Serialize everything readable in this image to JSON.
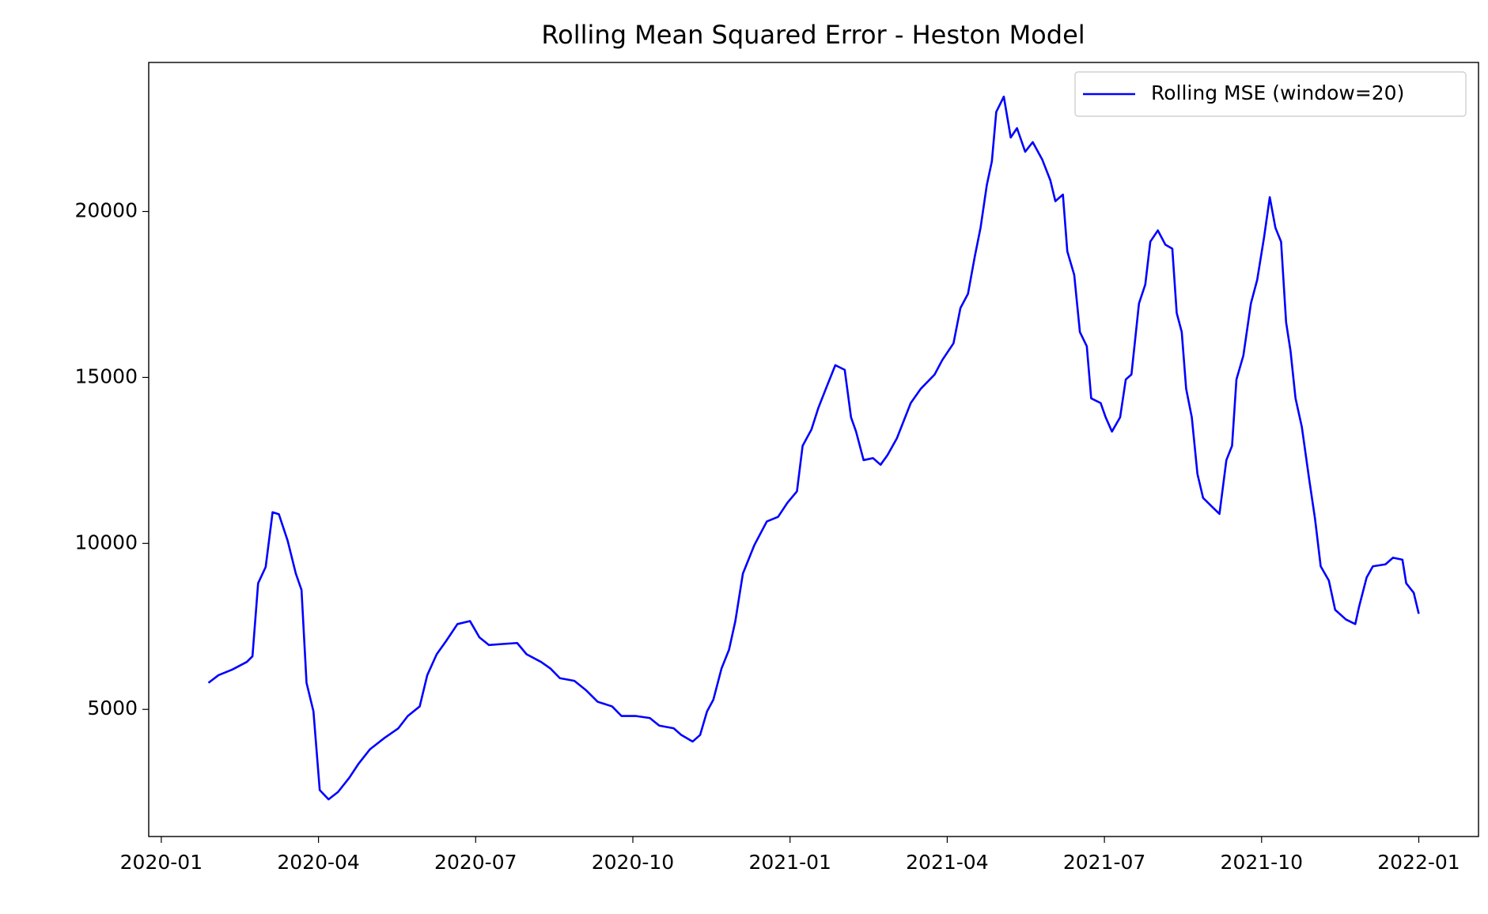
{
  "chart_data": {
    "type": "line",
    "title": "Rolling Mean Squared Error - Heston Model",
    "x": [
      2020.075,
      2020.091,
      2020.113,
      2020.136,
      2020.145,
      2020.154,
      2020.166,
      2020.177,
      2020.187,
      2020.201,
      2020.214,
      2020.223,
      2020.231,
      2020.242,
      2020.252,
      2020.266,
      2020.281,
      2020.299,
      2020.314,
      2020.332,
      2020.355,
      2020.377,
      2020.392,
      2020.411,
      2020.423,
      2020.438,
      2020.453,
      2020.471,
      2020.491,
      2020.506,
      2020.521,
      2020.543,
      2020.566,
      2020.581,
      2020.604,
      2020.619,
      2020.634,
      2020.657,
      2020.676,
      2020.694,
      2020.717,
      2020.732,
      2020.755,
      2020.777,
      2020.792,
      2020.815,
      2020.827,
      2020.845,
      2020.857,
      2020.868,
      2020.878,
      2020.891,
      2020.903,
      2020.913,
      2020.925,
      2020.943,
      2020.963,
      2020.981,
      2020.996,
      2021.011,
      2021.02,
      2021.034,
      2021.045,
      2021.057,
      2021.072,
      2021.087,
      2021.097,
      2021.105,
      2021.117,
      2021.132,
      2021.144,
      2021.155,
      2021.17,
      2021.192,
      2021.208,
      2021.23,
      2021.242,
      2021.26,
      2021.271,
      2021.283,
      2021.294,
      2021.303,
      2021.313,
      2021.321,
      2021.328,
      2021.34,
      2021.351,
      2021.361,
      2021.374,
      2021.386,
      2021.401,
      2021.414,
      2021.422,
      2021.434,
      2021.441,
      2021.452,
      2021.461,
      2021.472,
      2021.479,
      2021.494,
      2021.502,
      2021.512,
      2021.525,
      2021.534,
      2021.543,
      2021.555,
      2021.565,
      2021.573,
      2021.585,
      2021.597,
      2021.608,
      2021.615,
      2021.623,
      2021.63,
      2021.639,
      2021.648,
      2021.657,
      2021.672,
      2021.683,
      2021.694,
      2021.703,
      2021.71,
      2021.721,
      2021.733,
      2021.743,
      2021.754,
      2021.763,
      2021.772,
      2021.781,
      2021.789,
      2021.796,
      2021.804,
      2021.814,
      2021.826,
      2021.835,
      2021.844,
      2021.857,
      2021.867,
      2021.884,
      2021.899,
      2021.905,
      2021.917,
      2021.927,
      2021.947,
      2021.959,
      2021.974,
      2021.98,
      2021.992,
      2022.0
    ],
    "series": [
      {
        "name": "Rolling MSE (window=20)",
        "color": "#0000ff",
        "values": [
          5800,
          6030,
          6200,
          6430,
          6600,
          8800,
          9290,
          10940,
          10880,
          10080,
          9090,
          8600,
          5800,
          4940,
          2570,
          2290,
          2510,
          2940,
          3370,
          3800,
          4140,
          4430,
          4800,
          5090,
          6030,
          6660,
          7060,
          7570,
          7660,
          7170,
          6940,
          6970,
          7000,
          6660,
          6430,
          6230,
          5940,
          5860,
          5570,
          5230,
          5090,
          4800,
          4800,
          4740,
          4510,
          4430,
          4230,
          4030,
          4230,
          4940,
          5290,
          6230,
          6800,
          7660,
          9090,
          9940,
          10660,
          10800,
          11230,
          11570,
          12940,
          13430,
          14080,
          14660,
          15370,
          15230,
          13800,
          13370,
          12510,
          12570,
          12370,
          12660,
          13170,
          14230,
          14660,
          15090,
          15520,
          16030,
          17090,
          17520,
          18660,
          19510,
          20800,
          21510,
          23000,
          23460,
          22230,
          22510,
          21800,
          22090,
          21570,
          20940,
          20310,
          20510,
          18800,
          18090,
          16370,
          15940,
          14370,
          14230,
          13800,
          13370,
          13800,
          14940,
          15090,
          17230,
          17800,
          19090,
          19430,
          19000,
          18880,
          16940,
          16370,
          14660,
          13800,
          12090,
          11370,
          11090,
          10890,
          12510,
          12940,
          14940,
          15660,
          17230,
          17940,
          19230,
          20430,
          19510,
          19090,
          16660,
          15800,
          14370,
          13510,
          11890,
          10740,
          9310,
          8880,
          8000,
          7710,
          7570,
          8090,
          8970,
          9310,
          9370,
          9570,
          9510,
          8800,
          8510,
          7880
        ]
      }
    ],
    "xlim": [
      2019.98,
      2022.095
    ],
    "xticks": [
      {
        "value": 2020,
        "label": "2020-01"
      },
      {
        "value": 2020.25,
        "label": "2020-04"
      },
      {
        "value": 2020.5,
        "label": "2020-07"
      },
      {
        "value": 2020.75,
        "label": "2020-10"
      },
      {
        "value": 2021,
        "label": "2021-01"
      },
      {
        "value": 2021.25,
        "label": "2021-04"
      },
      {
        "value": 2021.5,
        "label": "2021-07"
      },
      {
        "value": 2021.75,
        "label": "2021-10"
      },
      {
        "value": 2022,
        "label": "2022-01"
      }
    ],
    "ylim": [
      1170,
      24490
    ],
    "yticks": [
      5000,
      10000,
      15000,
      20000
    ],
    "grid": false,
    "legend": "upper right"
  }
}
